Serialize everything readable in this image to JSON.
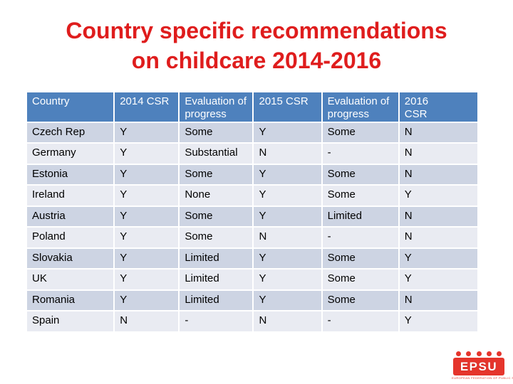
{
  "title": {
    "line1": "Country specific recommendations",
    "line2": "on childcare 2014-2016"
  },
  "colors": {
    "title_red": "#DF1D1D",
    "header_blue": "#4E81BD",
    "band_dark": "#CDD4E3",
    "band_light": "#E9EBF2",
    "logo_red": "#E5352C",
    "header_text": "#FFFFFF",
    "body_text": "#000000"
  },
  "table": {
    "headers": [
      "Country",
      "2014 CSR",
      "Evaluation of progress",
      "2015 CSR",
      "Evaluation of progress",
      "2016\nCSR"
    ],
    "rows": [
      [
        "Czech Rep",
        "Y",
        "Some",
        "Y",
        "Some",
        "N"
      ],
      [
        "Germany",
        "Y",
        "Substantial",
        "N",
        "-",
        "N"
      ],
      [
        "Estonia",
        "Y",
        "Some",
        "Y",
        "Some",
        "N"
      ],
      [
        "Ireland",
        "Y",
        "None",
        "Y",
        "Some",
        "Y"
      ],
      [
        "Austria",
        "Y",
        "Some",
        "Y",
        "Limited",
        "N"
      ],
      [
        "Poland",
        "Y",
        "Some",
        "N",
        "-",
        "N"
      ],
      [
        "Slovakia",
        "Y",
        "Limited",
        "Y",
        "Some",
        "Y"
      ],
      [
        "UK",
        "Y",
        "Limited",
        "Y",
        "Some",
        "Y"
      ],
      [
        "Romania",
        "Y",
        "Limited",
        "Y",
        "Some",
        "N"
      ],
      [
        "Spain",
        "N",
        "-",
        "N",
        "-",
        "Y"
      ]
    ]
  },
  "logo": {
    "text": "EPSU",
    "tagline": "EUROPEAN FEDERATION OF PUBLIC SERVICE UNIONS",
    "dots": 5
  }
}
